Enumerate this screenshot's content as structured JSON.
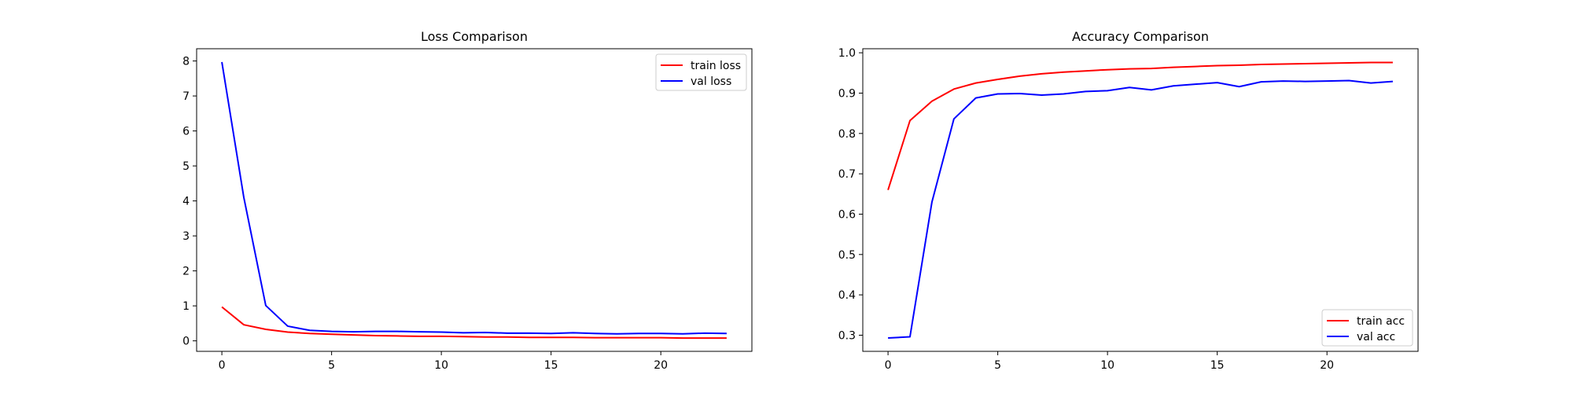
{
  "chart_data": [
    {
      "type": "line",
      "title": "Loss Comparison",
      "xlabel": "",
      "ylabel": "",
      "xlim": [
        -1.15,
        24.15
      ],
      "ylim": [
        -0.3,
        8.35
      ],
      "xticks": [
        0,
        5,
        10,
        15,
        20
      ],
      "yticks": [
        0,
        1,
        2,
        3,
        4,
        5,
        6,
        7,
        8
      ],
      "grid": false,
      "legend_position": "top-right",
      "x": [
        0,
        1,
        2,
        3,
        4,
        5,
        6,
        7,
        8,
        9,
        10,
        11,
        12,
        13,
        14,
        15,
        16,
        17,
        18,
        19,
        20,
        21,
        22,
        23
      ],
      "series": [
        {
          "name": "train loss",
          "color": "#ff0000",
          "values": [
            0.97,
            0.46,
            0.33,
            0.25,
            0.21,
            0.19,
            0.17,
            0.15,
            0.14,
            0.13,
            0.13,
            0.12,
            0.11,
            0.11,
            0.1,
            0.1,
            0.1,
            0.09,
            0.09,
            0.09,
            0.09,
            0.08,
            0.08,
            0.08
          ]
        },
        {
          "name": "val loss",
          "color": "#0000ff",
          "values": [
            7.97,
            4.1,
            1.01,
            0.42,
            0.3,
            0.27,
            0.26,
            0.27,
            0.27,
            0.26,
            0.25,
            0.23,
            0.24,
            0.22,
            0.22,
            0.21,
            0.23,
            0.21,
            0.2,
            0.21,
            0.21,
            0.2,
            0.22,
            0.21
          ]
        }
      ]
    },
    {
      "type": "line",
      "title": "Accuracy Comparison",
      "xlabel": "",
      "ylabel": "",
      "xlim": [
        -1.15,
        24.15
      ],
      "ylim": [
        0.26,
        1.01
      ],
      "xticks": [
        0,
        5,
        10,
        15,
        20
      ],
      "yticks": [
        0.3,
        0.4,
        0.5,
        0.6,
        0.7,
        0.8,
        0.9,
        1.0
      ],
      "ytick_labels": [
        "0.3",
        "0.4",
        "0.5",
        "0.6",
        "0.7",
        "0.8",
        "0.9",
        "1.0"
      ],
      "grid": false,
      "legend_position": "bottom-right",
      "x": [
        0,
        1,
        2,
        3,
        4,
        5,
        6,
        7,
        8,
        9,
        10,
        11,
        12,
        13,
        14,
        15,
        16,
        17,
        18,
        19,
        20,
        21,
        22,
        23
      ],
      "series": [
        {
          "name": "train acc",
          "color": "#ff0000",
          "values": [
            0.66,
            0.832,
            0.88,
            0.91,
            0.925,
            0.934,
            0.942,
            0.948,
            0.952,
            0.955,
            0.958,
            0.96,
            0.961,
            0.964,
            0.966,
            0.968,
            0.969,
            0.971,
            0.972,
            0.973,
            0.974,
            0.975,
            0.976,
            0.976
          ]
        },
        {
          "name": "val acc",
          "color": "#0000ff",
          "values": [
            0.293,
            0.296,
            0.63,
            0.836,
            0.888,
            0.898,
            0.899,
            0.895,
            0.898,
            0.904,
            0.906,
            0.914,
            0.908,
            0.918,
            0.922,
            0.926,
            0.916,
            0.928,
            0.93,
            0.929,
            0.93,
            0.931,
            0.925,
            0.929
          ]
        }
      ]
    }
  ]
}
